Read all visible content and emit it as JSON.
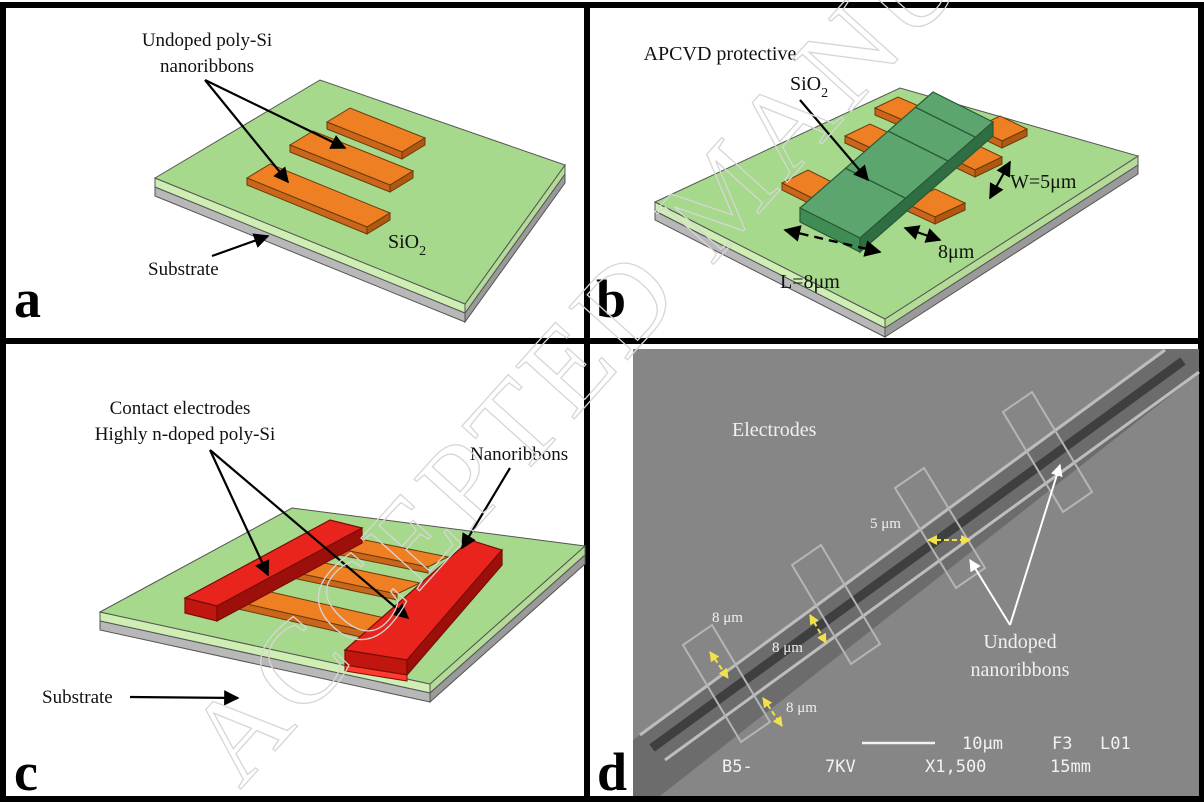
{
  "panels": {
    "a": {
      "letter": "a",
      "callout_line1": "Undoped poly-Si",
      "callout_line2": "nanoribbons",
      "oxide_label": "SiO",
      "oxide_sub": "2",
      "substrate_label": "Substrate"
    },
    "b": {
      "letter": "b",
      "callout_line1": "APCVD protective",
      "callout_line2": "SiO",
      "callout_sub": "2",
      "width_label": "W=5μm",
      "gap_label": "8μm",
      "length_label": "L=8μm"
    },
    "c": {
      "letter": "c",
      "callout_line1": "Contact electrodes",
      "callout_line2": "Highly n-doped poly-Si",
      "nanoribbons_label": "Nanoribbons",
      "substrate_label": "Substrate"
    },
    "d": {
      "letter": "d",
      "electrodes_label": "Electrodes",
      "width_label": "5 μm",
      "dim1_label": "8 μm",
      "dim2_label": "8 μm",
      "dim3_label": "8 μm",
      "nanoribbons_line1": "Undoped",
      "nanoribbons_line2": "nanoribbons",
      "sem_scale": "10μm",
      "sem_code1": "F3",
      "sem_code2": "L01",
      "sem_id": "B5-",
      "sem_kv": "7KV",
      "sem_mag": "X1,500",
      "sem_wd": "15mm"
    }
  },
  "watermark": "ACCEPTED MANUSCRIPT",
  "colors": {
    "oxide_green": "#a6d98b",
    "substrate_gray": "#b8b8b8",
    "ribbon_orange": "#ee7f22",
    "protective_green": "#3f8c55",
    "electrode_red": "#e8241c",
    "sem_background": "#868686",
    "dimension_yellow": "#f2e24a"
  }
}
